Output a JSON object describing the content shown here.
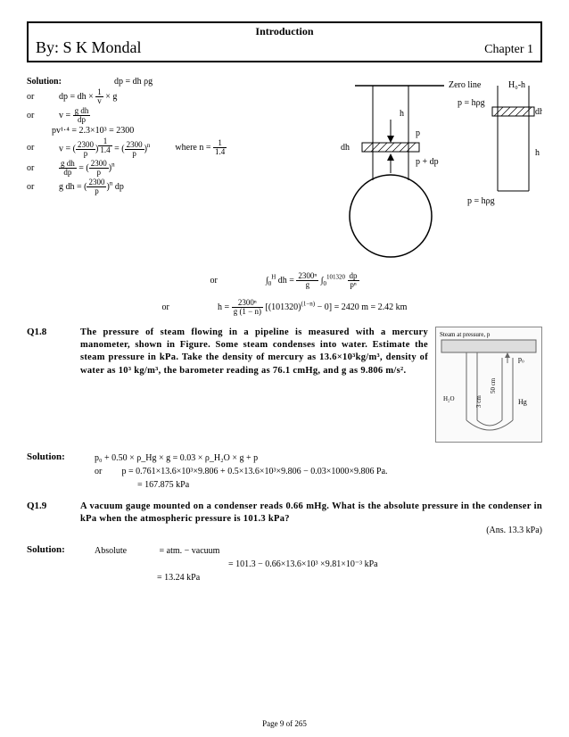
{
  "header": {
    "section_title": "Introduction",
    "author_prefix": "By:",
    "author": "S K Mondal",
    "chapter": "Chapter 1"
  },
  "solution_top": {
    "label": "Solution:",
    "eq0": "dp = dh ρg",
    "or": "or",
    "eq1": "dp = dh × (1/v) × g",
    "eq2": "v = g dh / dp",
    "eq3": "pv¹·⁴ = 2.3×10³ = 2300",
    "eq4": "v = (2300/p)^(1/1.4) = (2300/p)ⁿ",
    "where": "where n = 1/1.4",
    "eq5": "g dh / dp = (2300/p)ⁿ",
    "eq6": "g dh = (2300/p)ⁿ dp"
  },
  "mid": {
    "or": "or",
    "eq_int": "∫₀ᴴ dh = (2300ⁿ/g) ∫₀¹⁰¹³²⁰ dp/pⁿ",
    "eq_h": "h = [2300ⁿ / g(1−n)] [(101320)^(1−n) − 0] = 2420 m = 2.42 km"
  },
  "diagram": {
    "labels": {
      "zero_line": "Zero line",
      "h0_h": "H₀-h",
      "h_left": "h",
      "p": "p",
      "dh_left": "dh",
      "p_dp": "p + dp",
      "p_hrg_top": "p = hρg",
      "dh_right": "dh",
      "h_right": "h",
      "p_hrg_bot": "p = hρg"
    },
    "style": {
      "stroke": "#000000",
      "fill": "#ffffff",
      "hatch_spacing": 4,
      "circle_r": 46,
      "font_size": 11
    }
  },
  "q18": {
    "num": "Q1.8",
    "text": "The pressure of steam flowing in a pipeline is measured with a mercury manometer, shown in Figure. Some steam condenses into water. Estimate the steam pressure in kPa. Take the density of mercury as 13.6×10³kg/m³, density of water as 10³ kg/m³, the barometer reading as 76.1 cmHg, and g as 9.806 m/s².",
    "fig": {
      "caption_top": "Steam at pressure, p",
      "p0": "p₀",
      "h2o": "H₂O",
      "hg": "Hg",
      "dim_3cm": "3 cm",
      "dim_50cm": "50 cm"
    }
  },
  "sol18": {
    "label": "Solution:",
    "eq1": "p₀ + 0.50 × ρ_Hg × g = 0.03 × ρ_H₂O × g + p",
    "or": "or",
    "eq2": "p = 0.761×13.6×10³×9.806 + 0.5×13.6×10³×9.806 − 0.03×1000×9.806 Pa.",
    "eq3": "= 167.875 kPa"
  },
  "q19": {
    "num": "Q1.9",
    "text": "A vacuum gauge mounted on a condenser reads 0.66 mHg. What is the absolute pressure in the condenser in kPa when the atmospheric pressure is 101.3 kPa?",
    "ans": "(Ans. 13.3 kPa)"
  },
  "sol19": {
    "label": "Solution:",
    "l1a": "Absolute",
    "l1b": "= atm. − vacuum",
    "l2": "= 101.3 − 0.66×13.6×10³ ×9.81×10⁻³ kPa",
    "l3": "= 13.24 kPa"
  },
  "footer": "Page 9 of 265"
}
